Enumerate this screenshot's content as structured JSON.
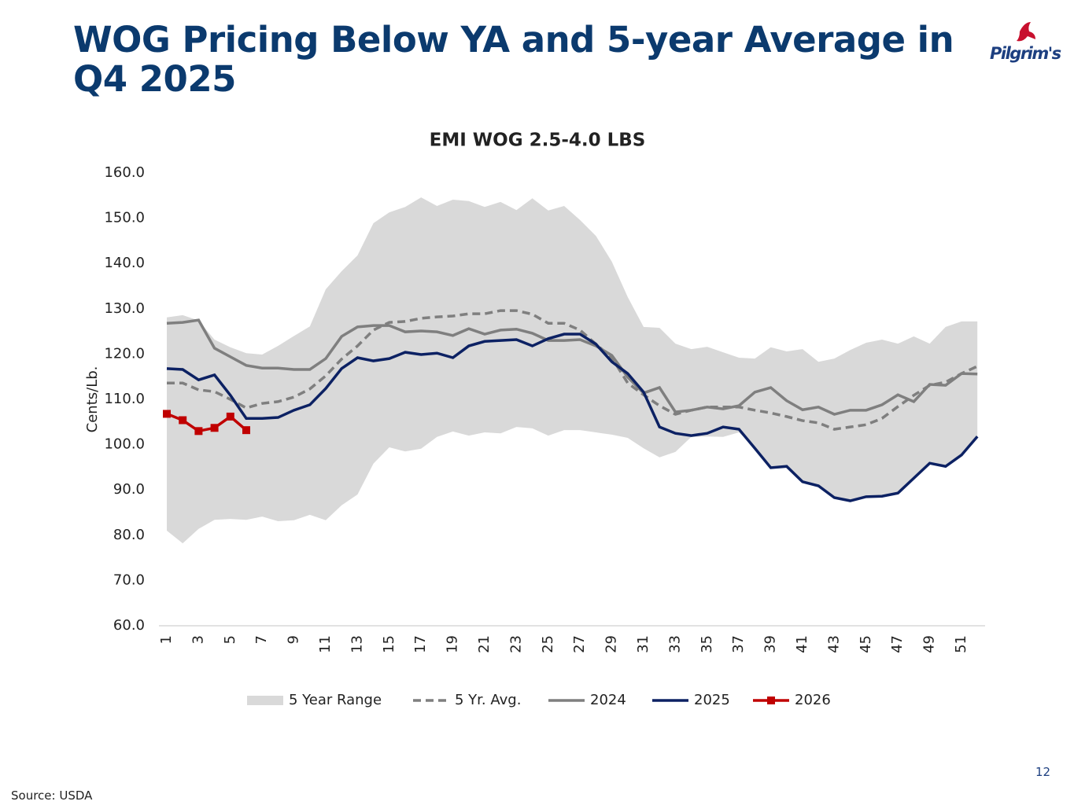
{
  "header": {
    "title": "WOG Pricing Below YA and 5-year Average in Q4 2025",
    "logo": "Pilgrim's"
  },
  "footer": {
    "source": "Source: USDA",
    "page": "12"
  },
  "chart_data": {
    "type": "line",
    "title": "EMI WOG 2.5-4.0 LBS",
    "y_label": "Cents/Lb.",
    "categories": [
      "1",
      null,
      "3",
      null,
      "5",
      null,
      "7",
      null,
      "9",
      null,
      "11",
      null,
      "13",
      null,
      "15",
      null,
      "17",
      null,
      "19",
      null,
      "21",
      null,
      "23",
      null,
      "25",
      null,
      "27",
      null,
      "29",
      null,
      "31",
      null,
      "33",
      null,
      "35",
      null,
      "37",
      null,
      "39",
      null,
      "41",
      null,
      "43",
      null,
      "45",
      null,
      "47",
      null,
      "49",
      null,
      "51",
      null
    ],
    "ylim": [
      60,
      160
    ],
    "yticks": [
      {
        "value": 60,
        "label": "60.0"
      },
      {
        "value": 70,
        "label": "70.0"
      },
      {
        "value": 80,
        "label": "80.0"
      },
      {
        "value": 90,
        "label": "90.0"
      },
      {
        "value": 100,
        "label": "100.0"
      },
      {
        "value": 110,
        "label": "110.0"
      },
      {
        "value": 120,
        "label": "120.0"
      },
      {
        "value": 130,
        "label": "130.0"
      },
      {
        "value": 140,
        "label": "140.0"
      },
      {
        "value": 150,
        "label": "150.0"
      },
      {
        "value": 160,
        "label": "160.0"
      }
    ],
    "legend": "bottom",
    "series": [
      {
        "name": "5 Year Range",
        "color": "#d9d9d9",
        "kind": "band",
        "high": [
          128.1,
          128.6,
          127.4,
          123.2,
          121.5,
          120.2,
          119.9,
          121.8,
          124,
          126.1,
          134.3,
          138.3,
          141.8,
          148.9,
          151.3,
          152.5,
          154.6,
          152.7,
          154.1,
          153.8,
          152.5,
          153.6,
          151.8,
          154.4,
          151.7,
          152.7,
          149.6,
          146.1,
          140.4,
          132.6,
          126,
          125.8,
          122.3,
          121.1,
          121.6,
          120.4,
          119.2,
          119,
          121.5,
          120.6,
          121.1,
          118.3,
          119,
          120.9,
          122.5,
          123.2,
          122.3,
          123.9,
          122.3,
          126,
          127.2,
          127.2
        ],
        "low": [
          81,
          78.2,
          81.4,
          83.4,
          83.6,
          83.4,
          84.1,
          83.1,
          83.3,
          84.5,
          83.3,
          86.6,
          89,
          95.8,
          99.4,
          98.5,
          99.1,
          101.7,
          102.9,
          102,
          102.7,
          102.5,
          103.9,
          103.6,
          102,
          103.2,
          103.2,
          102.7,
          102.2,
          101.5,
          99.2,
          97.2,
          98.4,
          101.7,
          101.8,
          101.7,
          102.7,
          99.2,
          94.9,
          95.2,
          91.8,
          90.9,
          88.3,
          87.6,
          88.5,
          88.6,
          89.3,
          92.6,
          95.9,
          95.2,
          97.7,
          101.8
        ]
      },
      {
        "name": "5 Yr. Avg.",
        "color": "#7f7f7f",
        "dashed": true,
        "values": [
          113.6,
          113.6,
          112.1,
          111.7,
          110,
          108.1,
          109.1,
          109.5,
          110.5,
          112.3,
          115.2,
          118.9,
          121.8,
          125.3,
          127,
          127.2,
          127.9,
          128.2,
          128.4,
          128.9,
          128.9,
          129.6,
          129.6,
          128.8,
          126.8,
          126.8,
          125.3,
          122.2,
          119.2,
          113.6,
          111,
          108.6,
          106.7,
          107.6,
          108.3,
          108.3,
          108.3,
          107.6,
          107,
          106.2,
          105.3,
          104.8,
          103.4,
          103.9,
          104.4,
          105.8,
          108.4,
          110.9,
          113.1,
          113.8,
          115.7,
          117.3
        ]
      },
      {
        "name": "2024",
        "color": "#7f7f7f",
        "values": [
          126.8,
          127,
          127.5,
          121.3,
          119.4,
          117.5,
          116.9,
          116.9,
          116.6,
          116.6,
          119,
          123.9,
          126,
          126.3,
          126.3,
          124.9,
          125.1,
          124.9,
          124.1,
          125.6,
          124.4,
          125.3,
          125.5,
          124.6,
          123,
          123,
          123.2,
          121.8,
          119.7,
          114.9,
          111.4,
          112.6,
          107.2,
          107.6,
          108.3,
          107.9,
          108.6,
          111.6,
          112.6,
          109.7,
          107.7,
          108.3,
          106.7,
          107.6,
          107.6,
          108.8,
          111,
          109.5,
          113.3,
          113.1,
          115.7,
          115.6
        ]
      },
      {
        "name": "2025",
        "color": "#0c2163",
        "values": [
          116.8,
          116.6,
          114.3,
          115.4,
          110.9,
          105.8,
          105.8,
          106,
          107.6,
          108.8,
          112.4,
          116.8,
          119.2,
          118.5,
          119,
          120.4,
          119.9,
          120.2,
          119.2,
          121.8,
          122.8,
          123,
          123.2,
          121.8,
          123.4,
          124.4,
          124.4,
          122.2,
          118.3,
          115.7,
          111.6,
          103.9,
          102.5,
          102,
          102.5,
          103.9,
          103.4,
          99.2,
          94.9,
          95.2,
          91.8,
          90.9,
          88.3,
          87.6,
          88.5,
          88.6,
          89.3,
          92.6,
          95.9,
          95.2,
          97.7,
          101.8
        ]
      },
      {
        "name": "2026",
        "color": "#c00000",
        "marker": "square",
        "values": [
          106.8,
          105.4,
          103,
          103.7,
          106.2,
          103.2,
          null,
          null,
          null,
          null,
          null,
          null,
          null,
          null,
          null,
          null,
          null,
          null,
          null,
          null,
          null,
          null,
          null,
          null,
          null,
          null,
          null,
          null,
          null,
          null,
          null,
          null,
          null,
          null,
          null,
          null,
          null,
          null,
          null,
          null,
          null,
          null,
          null,
          null,
          null,
          null,
          null,
          null,
          null,
          null,
          null,
          null
        ]
      }
    ]
  }
}
